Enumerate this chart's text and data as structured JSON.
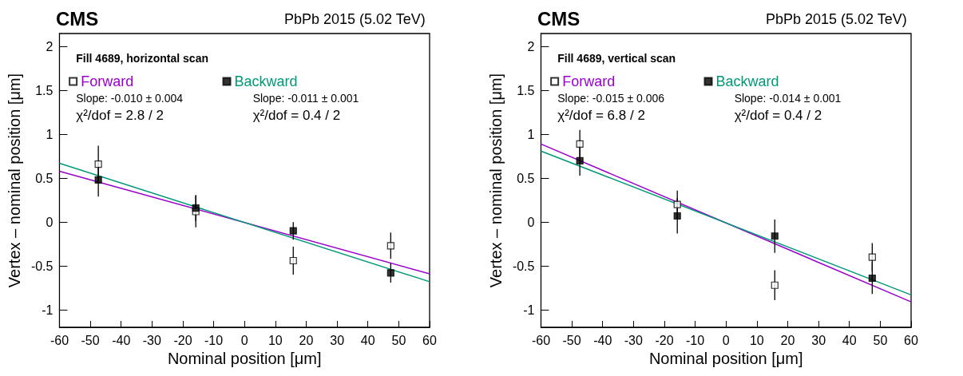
{
  "chart_data": [
    {
      "type": "scatter",
      "title": "CMS",
      "subtitle": "PbPb 2015 (5.02 TeV)",
      "xlabel": "Nominal position [μm]",
      "ylabel": "Vertex – nominal position [μm]",
      "annotations": [
        "Fill 4689, horizontal scan",
        "Slope: -0.010 ± 0.004",
        "χ²/dof = 2.8 / 2",
        "Slope: -0.011 ± 0.001",
        "χ²/dof = 0.4 / 2"
      ],
      "xlim": [
        -60,
        60
      ],
      "xticks": [
        -60,
        -50,
        -40,
        -30,
        -20,
        -10,
        0,
        10,
        20,
        30,
        40,
        50,
        60
      ],
      "ylim": [
        -1.2,
        2.15
      ],
      "yticks": [
        -1,
        -0.5,
        0,
        0.5,
        1,
        1.5,
        2
      ],
      "grid": false,
      "legend": "top left",
      "marker": "square",
      "series": [
        {
          "name": "Forward",
          "color": "#000000",
          "x": [
            -47.4,
            -15.8,
            15.8,
            47.4
          ],
          "values": [
            0.66,
            0.12,
            -0.44,
            -0.27
          ],
          "errors": [
            0.21,
            0.18,
            0.16,
            0.15
          ]
        },
        {
          "name": "Backward",
          "color": "#000000",
          "x": [
            -47.4,
            -15.8,
            15.8,
            47.4
          ],
          "values": [
            0.48,
            0.16,
            -0.1,
            -0.58
          ],
          "errors": [
            0.19,
            0.15,
            0.1,
            0.11
          ]
        },
        {
          "type": "line",
          "color": "#9900cc",
          "marker": "none",
          "x": [
            -60,
            60
          ],
          "values": [
            0.58,
            -0.59
          ]
        },
        {
          "type": "line",
          "color": "#009977",
          "marker": "none",
          "x": [
            -60,
            60
          ],
          "values": [
            0.67,
            -0.68
          ]
        }
      ]
    },
    {
      "type": "scatter",
      "title": "CMS",
      "subtitle": "PbPb 2015 (5.02 TeV)",
      "xlabel": "Nominal position [μm]",
      "ylabel": "Vertex – nominal position [μm]",
      "annotations": [
        "Fill 4689, vertical scan",
        "Slope: -0.015 ± 0.006",
        "χ²/dof = 6.8 / 2",
        "Slope: -0.014 ± 0.001",
        "χ²/dof = 0.4 / 2"
      ],
      "xlim": [
        -60,
        60
      ],
      "xticks": [
        -60,
        -50,
        -40,
        -30,
        -20,
        -10,
        0,
        10,
        20,
        30,
        40,
        50,
        60
      ],
      "ylim": [
        -1.2,
        2.15
      ],
      "yticks": [
        -1,
        -0.5,
        0,
        0.5,
        1,
        1.5,
        2
      ],
      "grid": false,
      "legend": "top left",
      "marker": "square",
      "series": [
        {
          "name": "Forward",
          "color": "#000000",
          "x": [
            -47.4,
            -15.8,
            15.8,
            47.4
          ],
          "values": [
            0.89,
            0.2,
            -0.72,
            -0.4
          ],
          "errors": [
            0.16,
            0.16,
            0.17,
            0.16
          ]
        },
        {
          "name": "Backward",
          "color": "#000000",
          "x": [
            -47.4,
            -15.8,
            15.8,
            47.4
          ],
          "values": [
            0.7,
            0.07,
            -0.16,
            -0.64
          ],
          "errors": [
            0.17,
            0.2,
            0.19,
            0.18
          ]
        },
        {
          "type": "line",
          "color": "#9900cc",
          "marker": "none",
          "x": [
            -60,
            60
          ],
          "values": [
            0.89,
            -0.91
          ]
        },
        {
          "type": "line",
          "color": "#009977",
          "marker": "none",
          "x": [
            -60,
            60
          ],
          "values": [
            0.81,
            -0.83
          ]
        }
      ]
    }
  ]
}
